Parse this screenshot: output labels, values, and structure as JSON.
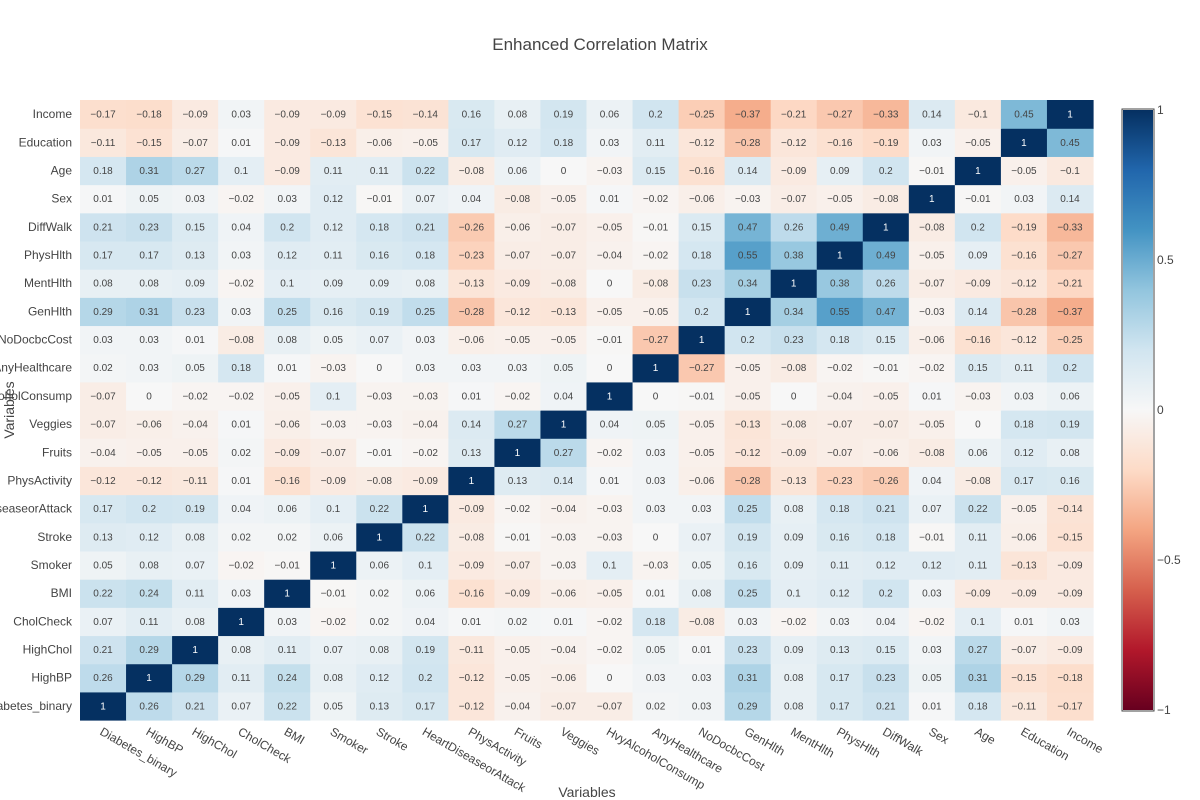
{
  "chart_data": {
    "type": "heatmap",
    "title": "Enhanced Correlation Matrix",
    "xlabel": "Variables",
    "ylabel": "Variables",
    "variables": [
      "Diabetes_binary",
      "HighBP",
      "HighChol",
      "CholCheck",
      "BMI",
      "Smoker",
      "Stroke",
      "HeartDiseaseorAttack",
      "PhysActivity",
      "Fruits",
      "Veggies",
      "HvyAlcoholConsump",
      "AnyHealthcare",
      "NoDocbcCost",
      "GenHlth",
      "MentHlth",
      "PhysHlth",
      "DiffWalk",
      "Sex",
      "Age",
      "Education",
      "Income"
    ],
    "matrix": [
      [
        1,
        0.26,
        0.21,
        0.07,
        0.22,
        0.05,
        0.13,
        0.17,
        -0.12,
        -0.04,
        -0.07,
        -0.07,
        0.02,
        0.03,
        0.29,
        0.08,
        0.17,
        0.21,
        0.01,
        0.18,
        -0.11,
        -0.17
      ],
      [
        0.26,
        1,
        0.29,
        0.11,
        0.24,
        0.08,
        0.12,
        0.2,
        -0.12,
        -0.05,
        -0.06,
        0,
        0.03,
        0.03,
        0.31,
        0.08,
        0.17,
        0.23,
        0.05,
        0.31,
        -0.15,
        -0.18
      ],
      [
        0.21,
        0.29,
        1,
        0.08,
        0.11,
        0.07,
        0.08,
        0.19,
        -0.11,
        -0.05,
        -0.04,
        -0.02,
        0.05,
        0.01,
        0.23,
        0.09,
        0.13,
        0.15,
        0.03,
        0.27,
        -0.07,
        -0.09
      ],
      [
        0.07,
        0.11,
        0.08,
        1,
        0.03,
        -0.02,
        0.02,
        0.04,
        0.01,
        0.02,
        0.01,
        -0.02,
        0.18,
        -0.08,
        0.03,
        -0.02,
        0.03,
        0.04,
        -0.02,
        0.1,
        0.01,
        0.03
      ],
      [
        0.22,
        0.24,
        0.11,
        0.03,
        1,
        -0.01,
        0.02,
        0.06,
        -0.16,
        -0.09,
        -0.06,
        -0.05,
        0.01,
        0.08,
        0.25,
        0.1,
        0.12,
        0.2,
        0.03,
        -0.09,
        -0.09,
        -0.09
      ],
      [
        0.05,
        0.08,
        0.07,
        -0.02,
        -0.01,
        1,
        0.06,
        0.1,
        -0.09,
        -0.07,
        -0.03,
        0.1,
        -0.03,
        0.05,
        0.16,
        0.09,
        0.11,
        0.12,
        0.12,
        0.11,
        -0.13,
        -0.09
      ],
      [
        0.13,
        0.12,
        0.08,
        0.02,
        0.02,
        0.06,
        1,
        0.22,
        -0.08,
        -0.01,
        -0.03,
        -0.03,
        0,
        0.07,
        0.19,
        0.09,
        0.16,
        0.18,
        -0.01,
        0.11,
        -0.06,
        -0.15
      ],
      [
        0.17,
        0.2,
        0.19,
        0.04,
        0.06,
        0.1,
        0.22,
        1,
        -0.09,
        -0.02,
        -0.04,
        -0.03,
        0.03,
        0.03,
        0.25,
        0.08,
        0.18,
        0.21,
        0.07,
        0.22,
        -0.05,
        -0.14
      ],
      [
        -0.12,
        -0.12,
        -0.11,
        0.01,
        -0.16,
        -0.09,
        -0.08,
        -0.09,
        1,
        0.13,
        0.14,
        0.01,
        0.03,
        -0.06,
        -0.28,
        -0.13,
        -0.23,
        -0.26,
        0.04,
        -0.08,
        0.17,
        0.16
      ],
      [
        -0.04,
        -0.05,
        -0.05,
        0.02,
        -0.09,
        -0.07,
        -0.01,
        -0.02,
        0.13,
        1,
        0.27,
        -0.02,
        0.03,
        -0.05,
        -0.12,
        -0.09,
        -0.07,
        -0.06,
        -0.08,
        0.06,
        0.12,
        0.08
      ],
      [
        -0.07,
        -0.06,
        -0.04,
        0.01,
        -0.06,
        -0.03,
        -0.03,
        -0.04,
        0.14,
        0.27,
        1,
        0.04,
        0.05,
        -0.05,
        -0.13,
        -0.08,
        -0.07,
        -0.07,
        -0.05,
        0,
        0.18,
        0.19
      ],
      [
        -0.07,
        0,
        -0.02,
        -0.02,
        -0.05,
        0.1,
        -0.03,
        -0.03,
        0.01,
        -0.02,
        0.04,
        1,
        0,
        -0.01,
        -0.05,
        0,
        -0.04,
        -0.05,
        0.01,
        -0.03,
        0.03,
        0.06
      ],
      [
        0.02,
        0.03,
        0.05,
        0.18,
        0.01,
        -0.03,
        0,
        0.03,
        0.03,
        0.03,
        0.05,
        0,
        1,
        -0.27,
        -0.05,
        -0.08,
        -0.02,
        -0.01,
        -0.02,
        0.15,
        0.11,
        0.2
      ],
      [
        0.03,
        0.03,
        0.01,
        -0.08,
        0.08,
        0.05,
        0.07,
        0.03,
        -0.06,
        -0.05,
        -0.05,
        -0.01,
        -0.27,
        1,
        0.2,
        0.23,
        0.18,
        0.15,
        -0.06,
        -0.16,
        -0.12,
        -0.25
      ],
      [
        0.29,
        0.31,
        0.23,
        0.03,
        0.25,
        0.16,
        0.19,
        0.25,
        -0.28,
        -0.12,
        -0.13,
        -0.05,
        -0.05,
        0.2,
        1,
        0.34,
        0.55,
        0.47,
        -0.03,
        0.14,
        -0.28,
        -0.37
      ],
      [
        0.08,
        0.08,
        0.09,
        -0.02,
        0.1,
        0.09,
        0.09,
        0.08,
        -0.13,
        -0.09,
        -0.08,
        0,
        -0.08,
        0.23,
        0.34,
        1,
        0.38,
        0.26,
        -0.07,
        -0.09,
        -0.12,
        -0.21
      ],
      [
        0.17,
        0.17,
        0.13,
        0.03,
        0.12,
        0.11,
        0.16,
        0.18,
        -0.23,
        -0.07,
        -0.07,
        -0.04,
        -0.02,
        0.18,
        0.55,
        0.38,
        1,
        0.49,
        -0.05,
        0.09,
        -0.16,
        -0.27
      ],
      [
        0.21,
        0.23,
        0.15,
        0.04,
        0.2,
        0.12,
        0.18,
        0.21,
        -0.26,
        -0.06,
        -0.07,
        -0.05,
        -0.01,
        0.15,
        0.47,
        0.26,
        0.49,
        1,
        -0.08,
        0.2,
        -0.19,
        -0.33
      ],
      [
        0.01,
        0.05,
        0.03,
        -0.02,
        0.03,
        0.12,
        -0.01,
        0.07,
        0.04,
        -0.08,
        -0.05,
        0.01,
        -0.02,
        -0.06,
        -0.03,
        -0.07,
        -0.05,
        -0.08,
        1,
        -0.01,
        0.03,
        0.14
      ],
      [
        0.18,
        0.31,
        0.27,
        0.1,
        -0.09,
        0.11,
        0.11,
        0.22,
        -0.08,
        0.06,
        0,
        -0.03,
        0.15,
        -0.16,
        0.14,
        -0.09,
        0.09,
        0.2,
        -0.01,
        1,
        -0.05,
        -0.1
      ],
      [
        -0.11,
        -0.15,
        -0.07,
        0.01,
        -0.09,
        -0.13,
        -0.06,
        -0.05,
        0.17,
        0.12,
        0.18,
        0.03,
        0.11,
        -0.12,
        -0.28,
        -0.12,
        -0.16,
        -0.19,
        0.03,
        -0.05,
        1,
        0.45
      ],
      [
        -0.17,
        -0.18,
        -0.09,
        0.03,
        -0.09,
        -0.09,
        -0.15,
        -0.14,
        0.16,
        0.08,
        0.19,
        0.06,
        0.2,
        -0.25,
        -0.37,
        -0.21,
        -0.27,
        -0.33,
        0.14,
        -0.1,
        0.45,
        1
      ]
    ],
    "zrange": [
      -1,
      1
    ],
    "colorscale": "RdBu",
    "colorbar_ticks": [
      1,
      0.5,
      0,
      -0.5,
      -1
    ],
    "colorbar_tick_labels": [
      "1",
      "0.5",
      "0",
      "−0.5",
      "−1"
    ],
    "colors": {
      "low": "#67001f",
      "high": "#053061",
      "text": "#444444"
    }
  }
}
